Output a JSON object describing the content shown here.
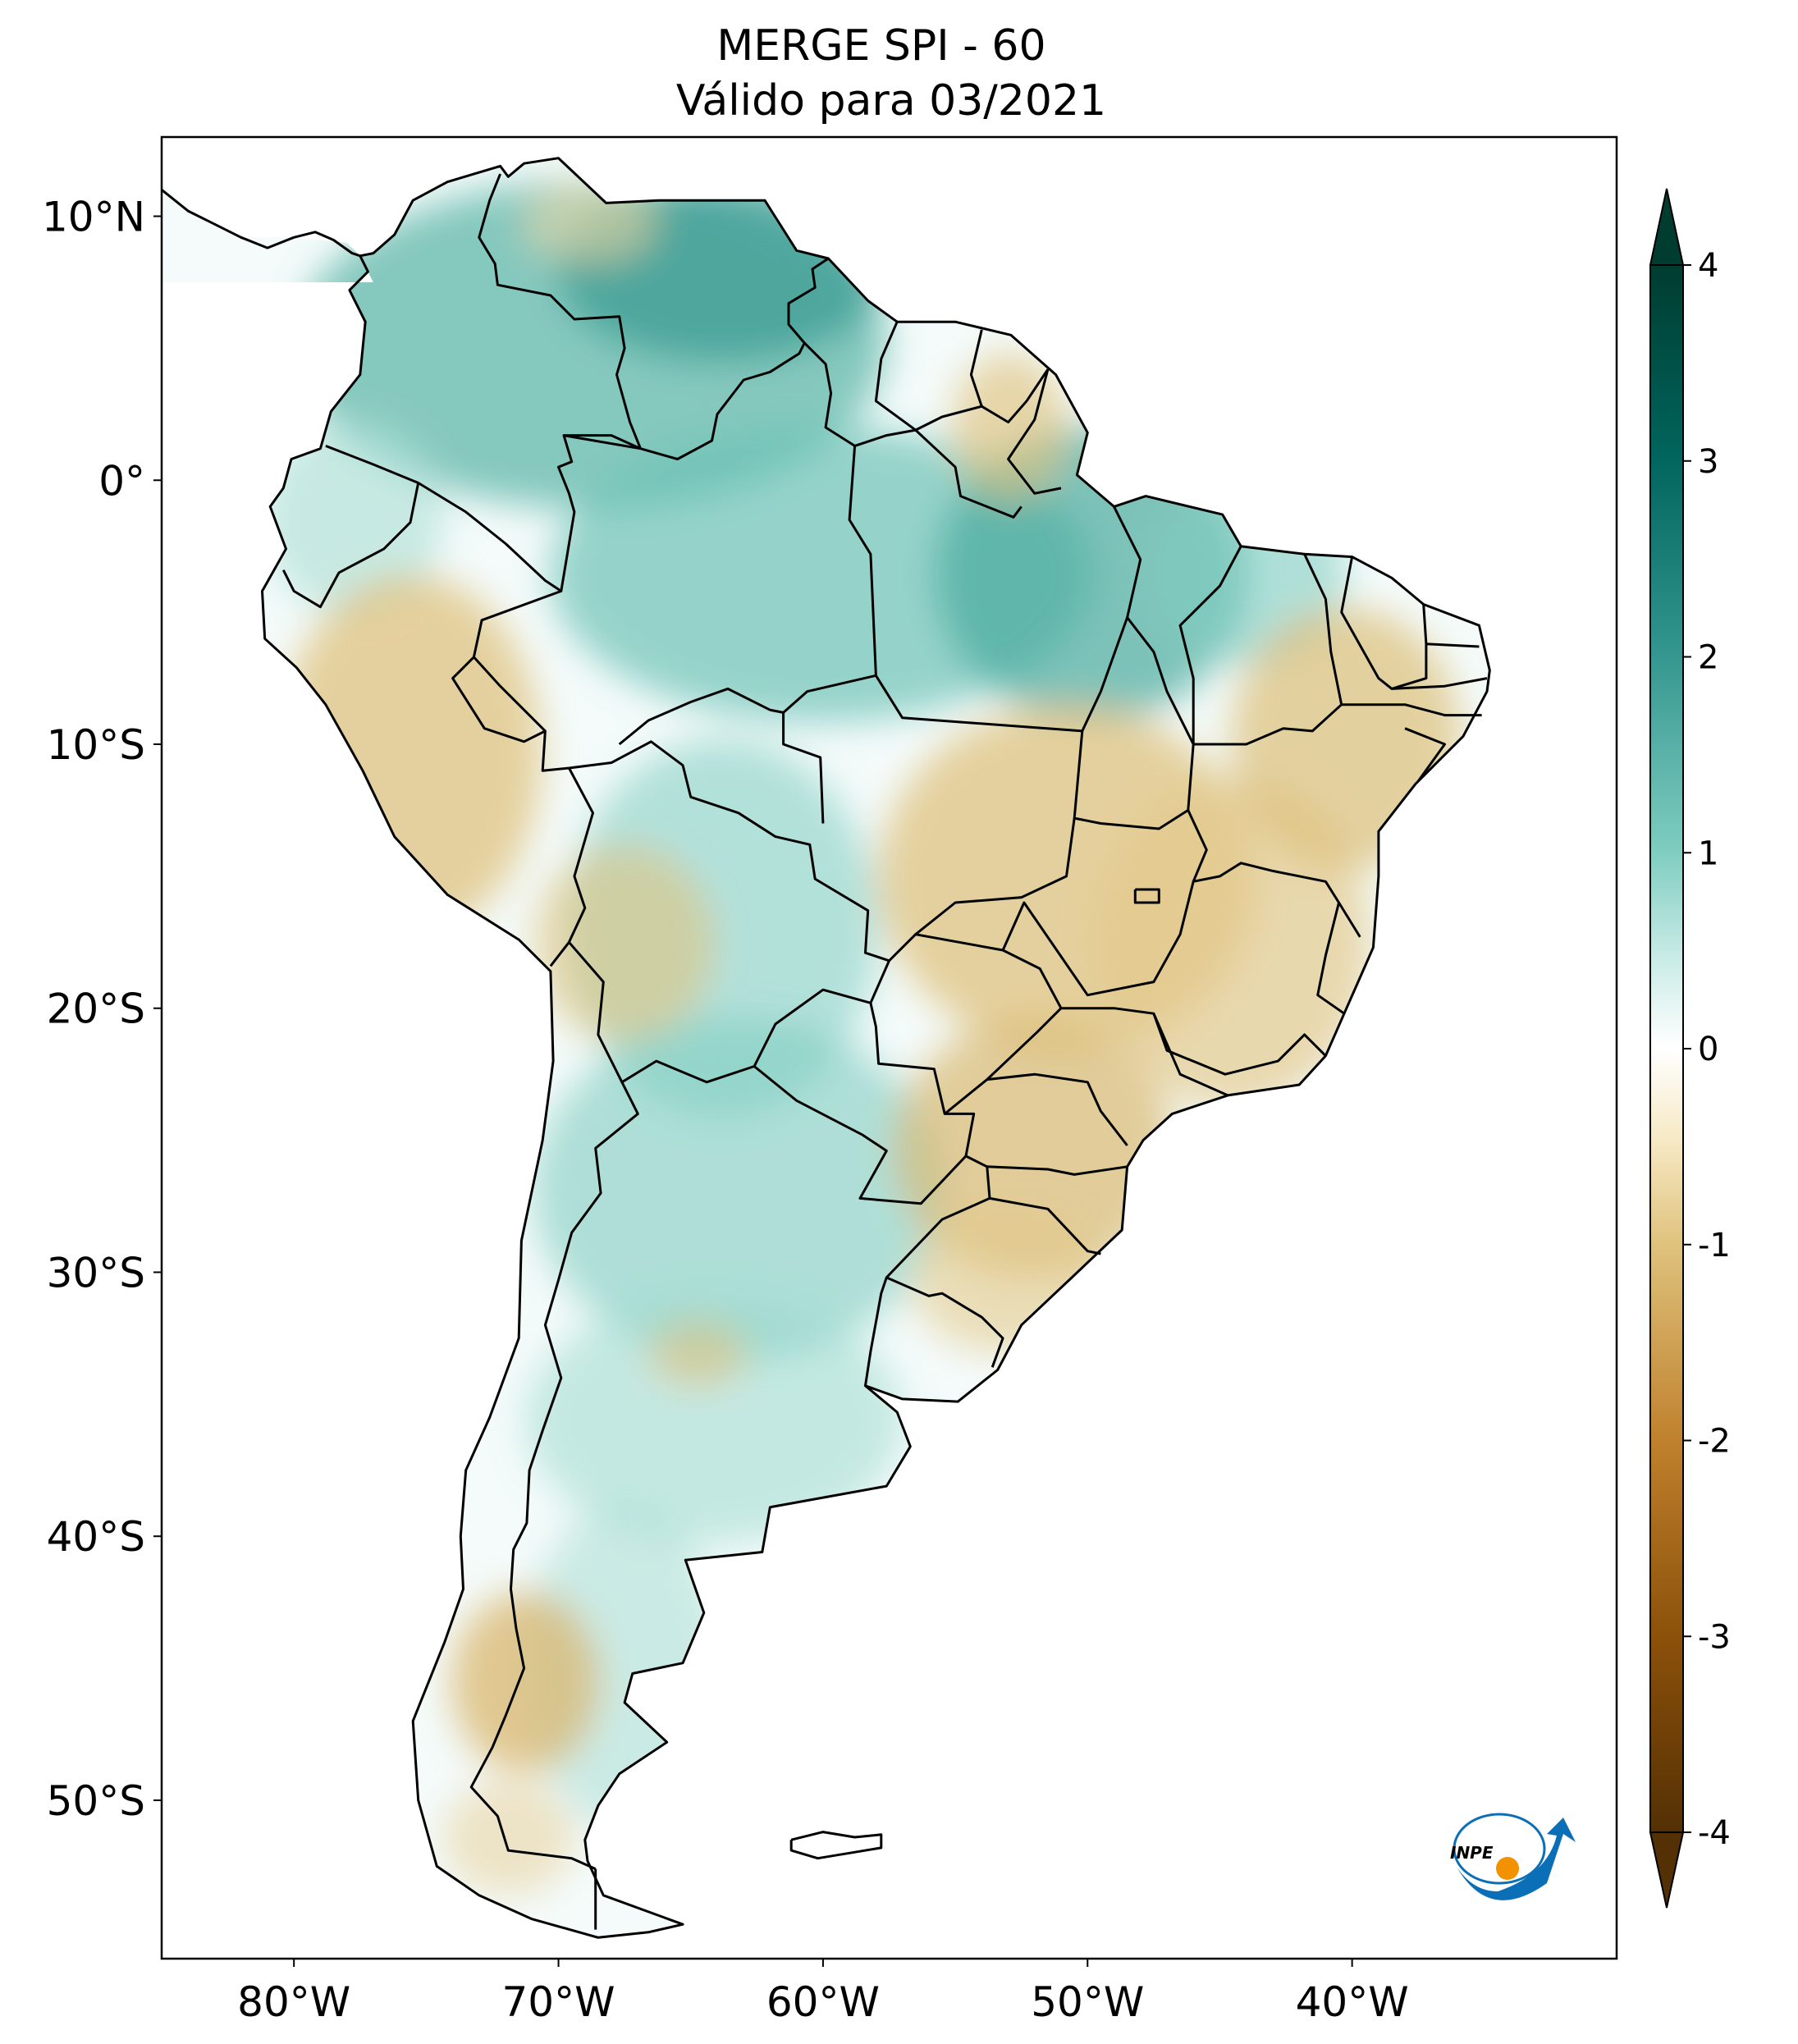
{
  "title": "MERGE   SPI - 60",
  "subtitle": "Válido para 03/2021",
  "lon_ticks": [
    {
      "lon": -80,
      "label": "80°W"
    },
    {
      "lon": -70,
      "label": "70°W"
    },
    {
      "lon": -60,
      "label": "60°W"
    },
    {
      "lon": -50,
      "label": "50°W"
    },
    {
      "lon": -40,
      "label": "40°W"
    }
  ],
  "lat_ticks": [
    {
      "lat": 10,
      "label": "10°N"
    },
    {
      "lat": 0,
      "label": "0°"
    },
    {
      "lat": -10,
      "label": "10°S"
    },
    {
      "lat": -20,
      "label": "20°S"
    },
    {
      "lat": -30,
      "label": "30°S"
    },
    {
      "lat": -40,
      "label": "40°S"
    },
    {
      "lat": -50,
      "label": "50°S"
    }
  ],
  "map_extent": {
    "lon_min": -85,
    "lon_max": -30,
    "lat_min": -56,
    "lat_max": 13
  },
  "colorbar": {
    "min": -4,
    "max": 4,
    "extend": "both",
    "ticks": [
      {
        "value": 4,
        "label": "4"
      },
      {
        "value": 3,
        "label": "3"
      },
      {
        "value": 2,
        "label": "2"
      },
      {
        "value": 1,
        "label": "1"
      },
      {
        "value": 0,
        "label": "0"
      },
      {
        "value": -1,
        "label": "-1"
      },
      {
        "value": -2,
        "label": "-2"
      },
      {
        "value": -3,
        "label": "-3"
      },
      {
        "value": -4,
        "label": "-4"
      }
    ],
    "colors": {
      "-4": "#543005",
      "-3": "#8c510a",
      "-2": "#bf812d",
      "-1": "#dfc27d",
      "-0.5": "#f6e8c3",
      "0": "#ffffff",
      "0.5": "#c7eae5",
      "1": "#80cdc1",
      "2": "#35978f",
      "3": "#01665e",
      "4": "#003c30"
    }
  },
  "logo": {
    "text": "INPE",
    "icon": "inpe-logo-icon",
    "colors": {
      "blue": "#0b6fb8",
      "orange": "#f39200"
    }
  }
}
